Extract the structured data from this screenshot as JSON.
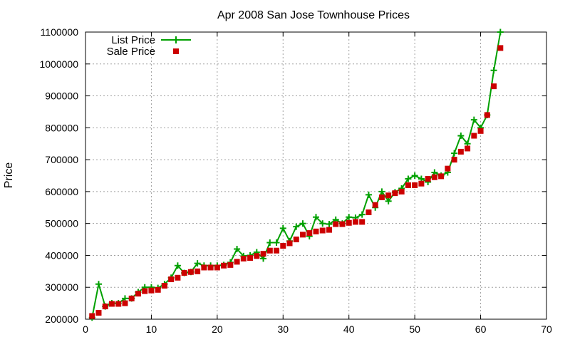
{
  "chart_data": {
    "type": "line",
    "title": "Apr 2008 San Jose Townhouse Prices",
    "xlabel": "",
    "ylabel": "Price",
    "xlim": [
      0,
      70
    ],
    "ylim": [
      200000,
      1100000
    ],
    "x_ticks": [
      0,
      10,
      20,
      30,
      40,
      50,
      60,
      70
    ],
    "y_ticks": [
      200000,
      300000,
      400000,
      500000,
      600000,
      700000,
      800000,
      900000,
      1000000,
      1100000
    ],
    "grid": true,
    "legend_position": "top-left",
    "series": [
      {
        "name": "List Price",
        "style": "line+cross",
        "color": "#00a000",
        "x": [
          1,
          2,
          3,
          4,
          5,
          6,
          7,
          8,
          9,
          10,
          11,
          12,
          13,
          14,
          15,
          16,
          17,
          18,
          19,
          20,
          21,
          22,
          23,
          24,
          25,
          26,
          27,
          28,
          29,
          30,
          31,
          32,
          33,
          34,
          35,
          36,
          37,
          38,
          39,
          40,
          41,
          42,
          43,
          44,
          45,
          46,
          47,
          48,
          49,
          50,
          51,
          52,
          53,
          54,
          55,
          56,
          57,
          58,
          59,
          60,
          61,
          62,
          63
        ],
        "values": [
          205000,
          310000,
          240000,
          250000,
          250000,
          265000,
          265000,
          285000,
          300000,
          300000,
          298000,
          310000,
          330000,
          368000,
          345000,
          348000,
          375000,
          368000,
          368000,
          368000,
          370000,
          378000,
          420000,
          398000,
          400000,
          410000,
          390000,
          440000,
          440000,
          485000,
          445000,
          490000,
          500000,
          460000,
          520000,
          500000,
          498000,
          512000,
          500000,
          520000,
          518000,
          528000,
          590000,
          550000,
          600000,
          570000,
          598000,
          610000,
          640000,
          650000,
          640000,
          630000,
          660000,
          650000,
          660000,
          720000,
          775000,
          750000,
          825000,
          800000,
          840000,
          980000,
          1100000
        ]
      },
      {
        "name": "Sale Price",
        "style": "square",
        "color": "#cc0000",
        "x": [
          1,
          2,
          3,
          4,
          5,
          6,
          7,
          8,
          9,
          10,
          11,
          12,
          13,
          14,
          15,
          16,
          17,
          18,
          19,
          20,
          21,
          22,
          23,
          24,
          25,
          26,
          27,
          28,
          29,
          30,
          31,
          32,
          33,
          34,
          35,
          36,
          37,
          38,
          39,
          40,
          41,
          42,
          43,
          44,
          45,
          46,
          47,
          48,
          49,
          50,
          51,
          52,
          53,
          54,
          55,
          56,
          57,
          58,
          59,
          60,
          61,
          62,
          63
        ],
        "values": [
          210000,
          220000,
          240000,
          248000,
          248000,
          250000,
          265000,
          280000,
          288000,
          290000,
          292000,
          305000,
          325000,
          330000,
          345000,
          348000,
          350000,
          362000,
          362000,
          362000,
          368000,
          370000,
          380000,
          390000,
          392000,
          398000,
          405000,
          415000,
          415000,
          430000,
          438000,
          450000,
          465000,
          470000,
          475000,
          478000,
          480000,
          498000,
          498000,
          502000,
          505000,
          505000,
          535000,
          558000,
          582000,
          588000,
          595000,
          600000,
          620000,
          620000,
          625000,
          640000,
          645000,
          648000,
          672000,
          700000,
          725000,
          735000,
          775000,
          790000,
          840000,
          930000,
          1050000
        ]
      }
    ]
  }
}
